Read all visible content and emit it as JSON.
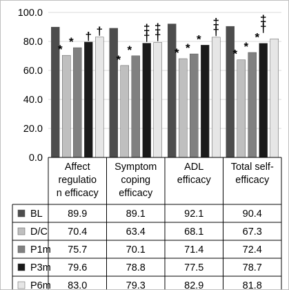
{
  "chart_data": {
    "type": "bar",
    "categories": [
      [
        "Affect",
        "regulatio",
        "n efficacy"
      ],
      [
        "Symptom",
        "coping",
        "efficacy"
      ],
      [
        "ADL",
        "efficacy"
      ],
      [
        "Total self-",
        "efficacy"
      ]
    ],
    "series": [
      {
        "name": "BL",
        "color": "#4d4d4d",
        "values": [
          89.9,
          89.1,
          92.1,
          90.4
        ]
      },
      {
        "name": "D/C",
        "color": "#bfbfbf",
        "values": [
          70.4,
          63.4,
          68.1,
          67.3
        ]
      },
      {
        "name": "P1m",
        "color": "#808080",
        "values": [
          75.7,
          70.1,
          71.4,
          72.4
        ]
      },
      {
        "name": "P3m",
        "color": "#1a1a1a",
        "values": [
          79.6,
          78.8,
          77.5,
          78.7
        ]
      },
      {
        "name": "P6m",
        "color": "#e6e6e6",
        "values": [
          83.0,
          79.3,
          82.9,
          81.8
        ]
      }
    ],
    "value_labels": [
      [
        "89.9",
        "89.1",
        "92.1",
        "90.4"
      ],
      [
        "70.4",
        "63.4",
        "68.1",
        "67.3"
      ],
      [
        "75.7",
        "70.1",
        "71.4",
        "72.4"
      ],
      [
        "79.6",
        "78.8",
        "77.5",
        "78.7"
      ],
      [
        "83.0",
        "79.3",
        "82.9",
        "81.8"
      ]
    ],
    "annotations": [
      [
        [],
        [],
        [],
        []
      ],
      [
        [
          "*"
        ],
        [
          "*"
        ],
        [
          "*"
        ],
        [
          "*"
        ]
      ],
      [
        [
          "*"
        ],
        [
          "*"
        ],
        [
          "*"
        ],
        [
          "*"
        ]
      ],
      [
        [
          "†"
        ],
        [
          "‡",
          "†"
        ],
        [
          "*"
        ],
        [
          "‡",
          "†",
          "*"
        ]
      ],
      [
        [
          "†"
        ],
        [
          "‡",
          "†"
        ],
        [
          "‡",
          "†"
        ],
        []
      ]
    ],
    "yticks": [
      "0.0",
      "20.0",
      "40.0",
      "60.0",
      "80.0",
      "100.0"
    ],
    "ylim": [
      0,
      100
    ],
    "grid": true,
    "legend": "data-table"
  }
}
